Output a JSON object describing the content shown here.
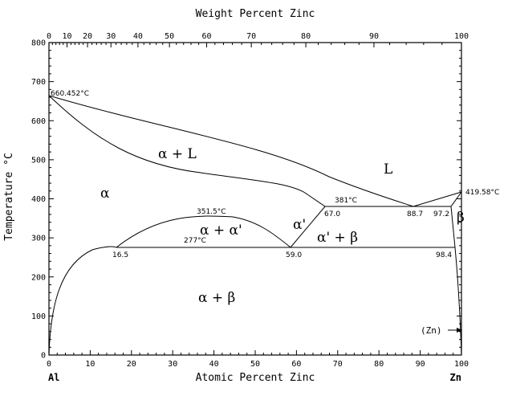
{
  "axes": {
    "top_title": "Weight Percent Zinc",
    "bottom_title": "Atomic Percent Zinc",
    "left_title": "Temperature °C",
    "left_end": "Al",
    "right_end": "Zn",
    "top_ticks": [
      {
        "wt": 0,
        "label": "0"
      },
      {
        "wt": 10,
        "label": "10"
      },
      {
        "wt": 20,
        "label": "20"
      },
      {
        "wt": 30,
        "label": "30"
      },
      {
        "wt": 40,
        "label": "40"
      },
      {
        "wt": 50,
        "label": "50"
      },
      {
        "wt": 60,
        "label": "60"
      },
      {
        "wt": 70,
        "label": "70"
      },
      {
        "wt": 80,
        "label": "80"
      },
      {
        "wt": 90,
        "label": "90"
      },
      {
        "wt": 100,
        "label": "100"
      }
    ],
    "bottom_ticks": [
      {
        "at": 0,
        "label": "0"
      },
      {
        "at": 10,
        "label": "10"
      },
      {
        "at": 20,
        "label": "20"
      },
      {
        "at": 30,
        "label": "30"
      },
      {
        "at": 40,
        "label": "40"
      },
      {
        "at": 50,
        "label": "50"
      },
      {
        "at": 60,
        "label": "60"
      },
      {
        "at": 70,
        "label": "70"
      },
      {
        "at": 80,
        "label": "80"
      },
      {
        "at": 90,
        "label": "90"
      },
      {
        "at": 100,
        "label": "100"
      }
    ],
    "left_ticks": [
      {
        "t": 0,
        "label": "0"
      },
      {
        "t": 100,
        "label": "100"
      },
      {
        "t": 200,
        "label": "200"
      },
      {
        "t": 300,
        "label": "300"
      },
      {
        "t": 400,
        "label": "400"
      },
      {
        "t": 500,
        "label": "500"
      },
      {
        "t": 600,
        "label": "600"
      },
      {
        "t": 700,
        "label": "700"
      },
      {
        "t": 800,
        "label": "800"
      }
    ],
    "x_range": [
      0,
      100
    ],
    "y_range": [
      0,
      800
    ]
  },
  "phases": {
    "alpha": "α",
    "alpha_l": "α + L",
    "liquid": "L",
    "alpha_alpha_prime": "α + α'",
    "alpha_prime": "α'",
    "alpha_prime_beta": "α' + β",
    "beta": "β",
    "alpha_beta": "α + β",
    "zn_solid": "(Zn)"
  },
  "annotations": {
    "al_melting": "660.452°C",
    "zn_melting": "419.58°C",
    "monotectoid_temp": "381°C",
    "miscibility_max": "351.5°C",
    "eutectoid_temp": "277°C",
    "c_67": "67.0",
    "c_887": "88.7",
    "c_972": "97.2",
    "c_165": "16.5",
    "c_590": "59.0",
    "c_984": "98.4"
  }
}
